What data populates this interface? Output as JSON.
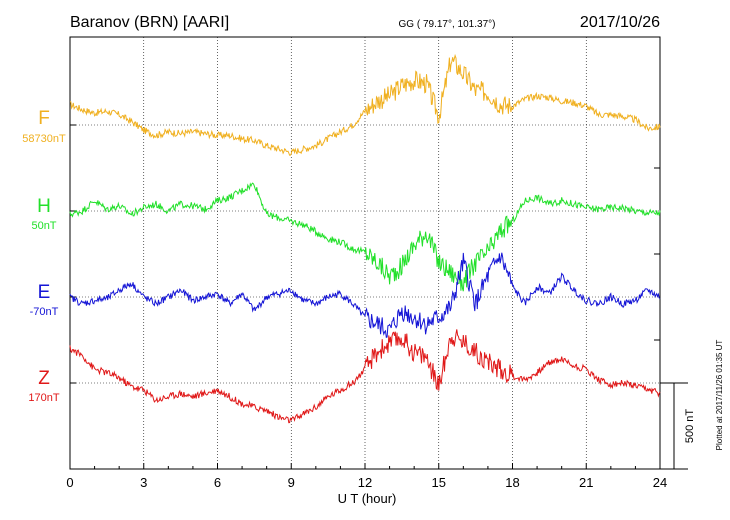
{
  "header": {
    "station": "Baranov (BRN)  [AARI]",
    "coords": "GG ( 79.17°, 101.37°)",
    "date": "2017/10/26"
  },
  "footer": {
    "plotted": "Plotted at 2017/11/26 01:35 UT",
    "scale_label": "500 nT"
  },
  "chart_data": {
    "type": "line",
    "xlabel": "U T (hour)",
    "xlim": [
      0,
      24
    ],
    "x_ticks": [
      "0",
      "3",
      "6",
      "9",
      "12",
      "15",
      "18",
      "21",
      "24"
    ],
    "grid": true,
    "series": [
      {
        "name": "F",
        "baseline": "58730nT",
        "color": "#f0b020",
        "x": [
          0,
          0.5,
          1,
          1.5,
          2,
          2.5,
          3,
          3.5,
          4,
          4.5,
          5,
          5.5,
          6,
          6.5,
          7,
          7.5,
          8,
          8.5,
          9,
          9.5,
          10,
          10.5,
          11,
          11.5,
          12,
          12.5,
          13,
          13.5,
          14,
          14.5,
          15,
          15.5,
          16,
          16.5,
          17,
          17.5,
          18,
          18.5,
          19,
          19.5,
          20,
          20.5,
          21,
          21.5,
          22,
          22.5,
          23,
          23.5,
          24
        ],
        "y": [
          120,
          90,
          70,
          80,
          60,
          20,
          -30,
          -60,
          -40,
          -50,
          -40,
          -50,
          -60,
          -60,
          -80,
          -90,
          -120,
          -140,
          -160,
          -140,
          -120,
          -80,
          -40,
          0,
          80,
          140,
          170,
          230,
          260,
          240,
          50,
          380,
          300,
          200,
          190,
          120,
          110,
          150,
          170,
          160,
          140,
          130,
          110,
          60,
          60,
          50,
          30,
          -20,
          -10
        ]
      },
      {
        "name": "H",
        "baseline": "50nT",
        "color": "#22e02a",
        "x": [
          0,
          0.5,
          1,
          1.5,
          2,
          2.5,
          3,
          3.5,
          4,
          4.5,
          5,
          5.5,
          6,
          6.5,
          7,
          7.5,
          8,
          8.5,
          9,
          9.5,
          10,
          10.5,
          11,
          11.5,
          12,
          12.5,
          13,
          13.5,
          14,
          14.5,
          15,
          15.5,
          16,
          16.5,
          17,
          17.5,
          18,
          18.5,
          19,
          19.5,
          20,
          20.5,
          21,
          21.5,
          22,
          22.5,
          23,
          23.5,
          24
        ],
        "y": [
          -20,
          0,
          60,
          10,
          30,
          -20,
          20,
          40,
          0,
          40,
          30,
          10,
          60,
          80,
          120,
          160,
          -20,
          -40,
          -60,
          -80,
          -120,
          -160,
          -180,
          -220,
          -240,
          -300,
          -380,
          -320,
          -200,
          -120,
          -300,
          -360,
          -420,
          -300,
          -240,
          -120,
          -60,
          60,
          80,
          40,
          60,
          40,
          20,
          10,
          20,
          20,
          0,
          -10,
          -10
        ]
      },
      {
        "name": "E",
        "baseline": "-70nT",
        "color": "#1515d6",
        "x": [
          0,
          0.5,
          1,
          1.5,
          2,
          2.5,
          3,
          3.5,
          4,
          4.5,
          5,
          5.5,
          6,
          6.5,
          7,
          7.5,
          8,
          8.5,
          9,
          9.5,
          10,
          10.5,
          11,
          11.5,
          12,
          12.5,
          13,
          13.5,
          14,
          14.5,
          15,
          15.5,
          16,
          16.5,
          17,
          17.5,
          18,
          18.5,
          19,
          19.5,
          20,
          20.5,
          21,
          21.5,
          22,
          22.5,
          23,
          23.5,
          24
        ],
        "y": [
          0,
          -40,
          -20,
          -10,
          40,
          80,
          0,
          -40,
          0,
          40,
          -20,
          0,
          20,
          -40,
          20,
          -80,
          0,
          20,
          40,
          -20,
          -40,
          0,
          20,
          -40,
          -120,
          -160,
          -200,
          -80,
          -120,
          -160,
          -120,
          -60,
          200,
          -40,
          120,
          240,
          60,
          -40,
          60,
          20,
          120,
          40,
          -20,
          -40,
          0,
          -40,
          -20,
          40,
          0
        ]
      },
      {
        "name": "Z",
        "baseline": "170nT",
        "color": "#e01818",
        "x": [
          0,
          0.5,
          1,
          1.5,
          2,
          2.5,
          3,
          3.5,
          4,
          4.5,
          5,
          5.5,
          6,
          6.5,
          7,
          7.5,
          8,
          8.5,
          9,
          9.5,
          10,
          10.5,
          11,
          11.5,
          12,
          12.5,
          13,
          13.5,
          14,
          14.5,
          15,
          15.5,
          16,
          16.5,
          17,
          17.5,
          18,
          18.5,
          19,
          19.5,
          20,
          20.5,
          21,
          21.5,
          22,
          22.5,
          23,
          23.5,
          24
        ],
        "y": [
          200,
          160,
          80,
          60,
          30,
          -20,
          -40,
          -100,
          -80,
          -60,
          -80,
          -60,
          -40,
          -80,
          -120,
          -140,
          -160,
          -200,
          -220,
          -180,
          -140,
          -80,
          -40,
          0,
          80,
          180,
          230,
          260,
          180,
          150,
          -20,
          280,
          240,
          180,
          120,
          80,
          40,
          20,
          60,
          120,
          140,
          100,
          80,
          20,
          -10,
          0,
          -20,
          -40,
          -60
        ]
      }
    ]
  }
}
